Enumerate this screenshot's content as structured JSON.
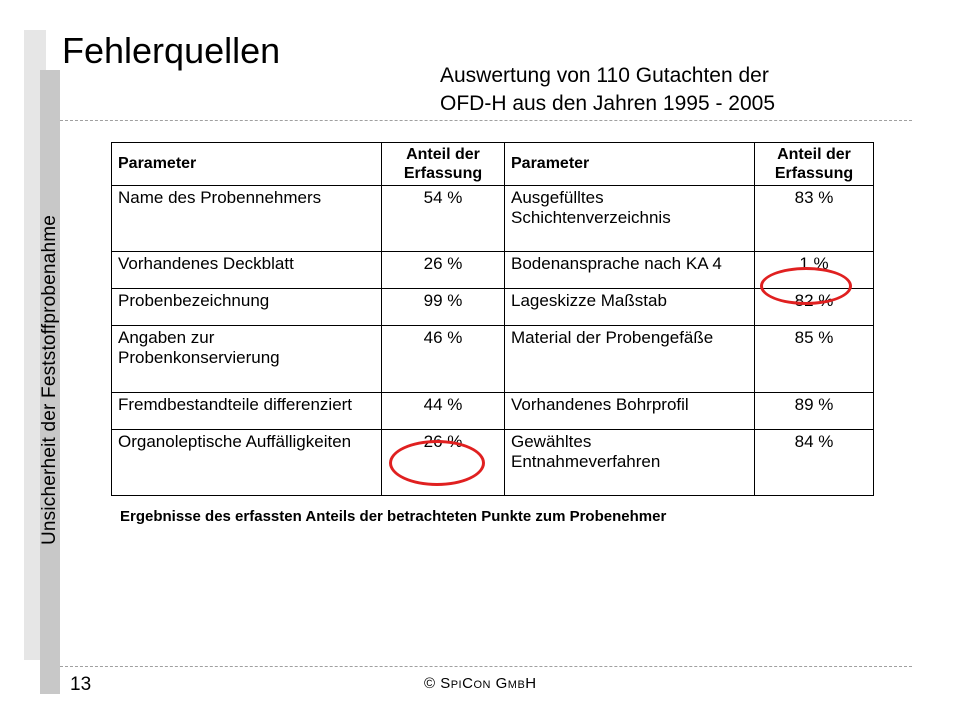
{
  "slide": {
    "title": "Fehlerquellen",
    "subtitle": "Auswertung von 110 Gutachten der\nOFD-H aus den Jahren 1995 - 2005",
    "side_label": "Unsicherheit der Feststoffprobenahme",
    "page_number": "13",
    "copyright": "© SpiCon GmbH",
    "caption": "Ergebnisse des erfassten Anteils der betrachteten Punkte zum Probenehmer"
  },
  "table": {
    "headers": [
      "Parameter",
      "Anteil der\nErfassung",
      "Parameter",
      "Anteil der\nErfassung"
    ],
    "rows": [
      [
        "Name des Probennehmers",
        "54 %",
        "Ausgefülltes\nSchichtenverzeichnis",
        "83 %"
      ],
      [
        "Vorhandenes Deckblatt",
        "26 %",
        "Bodenansprache nach KA 4",
        "1 %"
      ],
      [
        "Probenbezeichnung",
        "99 %",
        "Lageskizze Maßstab",
        "82 %"
      ],
      [
        "Angaben zur\nProbenkonservierung",
        "46 %",
        "Material der Probengefäße",
        "85 %"
      ],
      [
        "Fremdbestandteile differenziert",
        "44 %",
        "Vorhandenes Bohrprofil",
        "89 %"
      ],
      [
        "Organoleptische Auffälligkeiten",
        "26 %",
        "Gewähltes\nEntnahmeverfahren",
        "84 %"
      ]
    ]
  },
  "colors": {
    "highlight": "#e02020",
    "side_bar": "#c8c8c8"
  }
}
